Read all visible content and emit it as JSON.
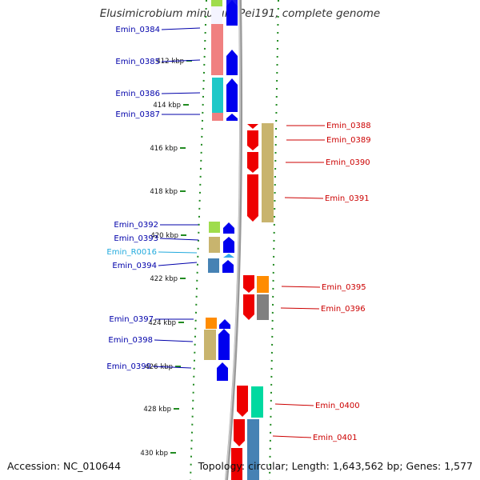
{
  "title": "Elusimicrobium minutum Pei191, complete genome",
  "accession": "Accession: NC_010644",
  "summary": "Topology: circular; Length: 1,643,562 bp; Genes: 1,577",
  "scale_labels": [
    "412 kbp",
    "414 kbp",
    "416 kbp",
    "418 kbp",
    "420 kbp",
    "422 kbp",
    "424 kbp",
    "426 kbp",
    "428 kbp",
    "430 kbp"
  ],
  "genes_left": [
    {
      "label": "Emin_0384",
      "color": "#0000aa"
    },
    {
      "label": "Emin_0385",
      "color": "#0000aa"
    },
    {
      "label": "Emin_0386",
      "color": "#0000aa"
    },
    {
      "label": "Emin_0387",
      "color": "#0000aa"
    },
    {
      "label": "Emin_0392",
      "color": "#0000aa"
    },
    {
      "label": "Emin_0393",
      "color": "#0000aa"
    },
    {
      "label": "Emin_R0016",
      "color": "#22aadd"
    },
    {
      "label": "Emin_0394",
      "color": "#0000aa"
    },
    {
      "label": "Emin_0397",
      "color": "#0000aa"
    },
    {
      "label": "Emin_0398",
      "color": "#0000aa"
    },
    {
      "label": "Emin_0399",
      "color": "#0000aa"
    }
  ],
  "genes_right": [
    {
      "label": "Emin_0388",
      "color": "#cc0000"
    },
    {
      "label": "Emin_0389",
      "color": "#cc0000"
    },
    {
      "label": "Emin_0390",
      "color": "#cc0000"
    },
    {
      "label": "Emin_0391",
      "color": "#cc0000"
    },
    {
      "label": "Emin_0395",
      "color": "#cc0000"
    },
    {
      "label": "Emin_0396",
      "color": "#cc0000"
    },
    {
      "label": "Emin_0400",
      "color": "#cc0000"
    },
    {
      "label": "Emin_0401",
      "color": "#cc0000"
    }
  ],
  "colors": {
    "backbone": "#888888",
    "forward_cds": "#0000ee",
    "reverse_cds": "#ee0000",
    "tick_green": "#228b22"
  }
}
